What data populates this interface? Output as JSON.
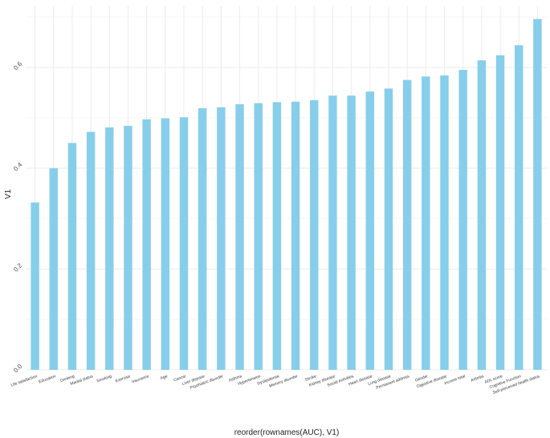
{
  "chart_data": {
    "type": "bar",
    "title": "",
    "xlabel": "reorder(rownames(AUC), V1)",
    "ylabel": "V1",
    "ylim": [
      0,
      0.7
    ],
    "yticks": [
      0.0,
      0.2,
      0.4,
      0.6
    ],
    "ytick_labels": [
      "0.0",
      "0.2",
      "0.4",
      "0.6"
    ],
    "grid": true,
    "bar_color": "#87CEEB",
    "categories": [
      "Life satisfaction",
      "Education",
      "Drinking",
      "Marital status",
      "Smoking",
      "Exercise",
      "Insurance",
      "Age",
      "Cancer",
      "Liver disease",
      "Psychiatric disorder",
      "Asthma",
      "Hypertension",
      "Dyslipidemia",
      "Memory disorder",
      "Stroke",
      "Kidney disease",
      "Social Activities",
      "Heart disease",
      "Lung disease",
      "Permanent address",
      "Gender",
      "Digestive disease",
      "Income total",
      "Arthritis",
      "ADL score",
      "Cognitive Function",
      "Self-perceived health status"
    ],
    "values": [
      0.332,
      0.4,
      0.45,
      0.472,
      0.481,
      0.484,
      0.497,
      0.499,
      0.501,
      0.519,
      0.521,
      0.527,
      0.529,
      0.531,
      0.532,
      0.535,
      0.544,
      0.544,
      0.552,
      0.558,
      0.575,
      0.582,
      0.584,
      0.595,
      0.614,
      0.624,
      0.644,
      0.696
    ]
  }
}
